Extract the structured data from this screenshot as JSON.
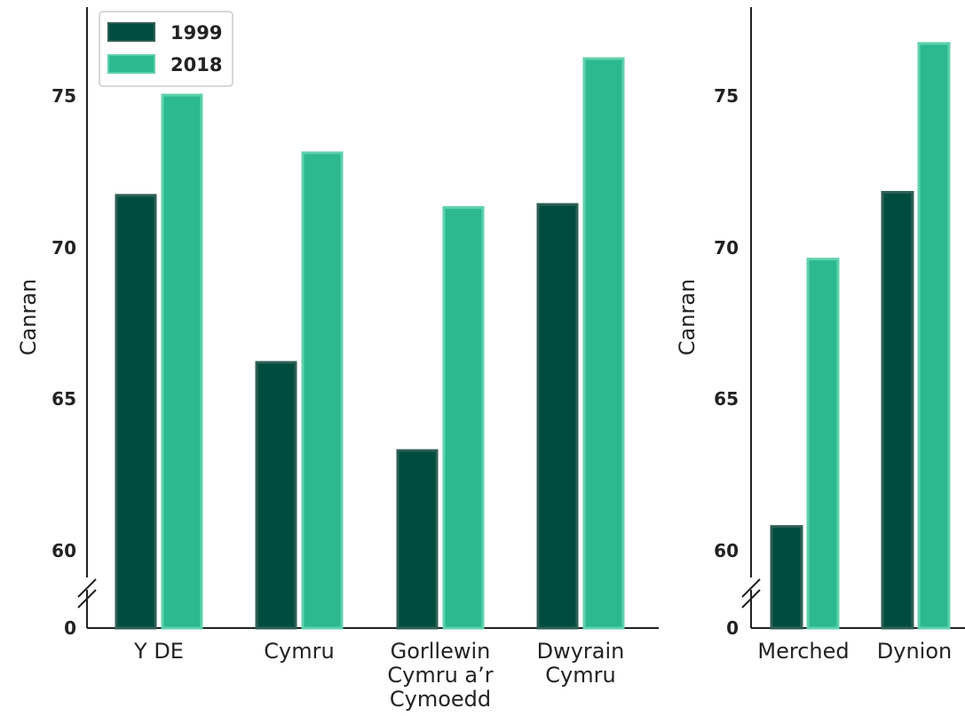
{
  "colors": {
    "s1999": "#004d40",
    "s1999_edge": "#2f5f55",
    "s2018": "#2cb990",
    "s2018_edge": "#5fd1ad"
  },
  "chart_data": [
    {
      "type": "bar",
      "categories": [
        [
          "Y DE"
        ],
        [
          "Cymru"
        ],
        [
          "Gorllewin",
          "Cymru a’r",
          "Cymoedd"
        ],
        [
          "Dwyrain",
          "Cymru"
        ]
      ],
      "series": [
        {
          "name": "1999",
          "values": [
            71.7,
            66.2,
            63.3,
            71.4
          ]
        },
        {
          "name": "2018",
          "values": [
            75.0,
            73.1,
            71.3,
            76.2
          ]
        }
      ],
      "ylabel": "Canran",
      "yticks": [
        "0",
        "60",
        "65",
        "70",
        "75"
      ],
      "ylim": [
        58,
        78
      ],
      "axis_break": true,
      "legend": "top-left"
    },
    {
      "type": "bar",
      "categories": [
        [
          "Merched"
        ],
        [
          "Dynion"
        ]
      ],
      "series": [
        {
          "name": "1999",
          "values": [
            60.8,
            71.8
          ]
        },
        {
          "name": "2018",
          "values": [
            69.6,
            76.7
          ]
        }
      ],
      "ylabel": "Canran",
      "yticks": [
        "0",
        "60",
        "65",
        "70",
        "75"
      ],
      "ylim": [
        58,
        78
      ],
      "axis_break": true
    }
  ]
}
